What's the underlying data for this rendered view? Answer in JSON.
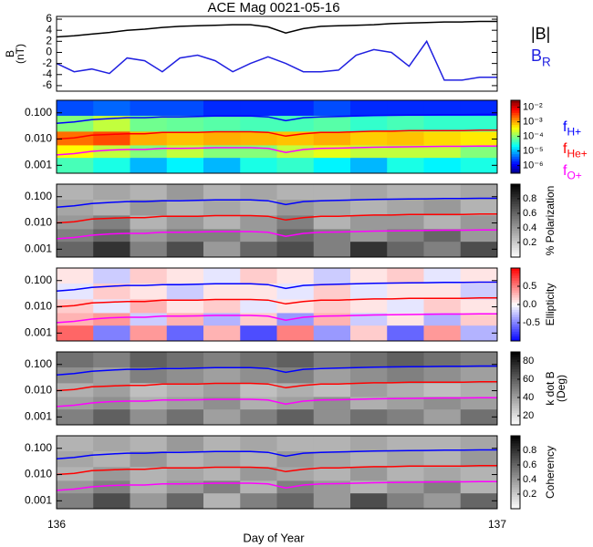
{
  "chart_data": [
    {
      "type": "line",
      "title": "ACE Mag 0021-05-16",
      "ylabel": [
        "B",
        "(nT)"
      ],
      "ylim": [
        -7,
        6.5
      ],
      "yticks": [
        -6,
        -4,
        -2,
        0,
        2,
        4,
        6
      ],
      "legend": "right",
      "x": [
        136,
        136.04,
        136.08,
        136.12,
        136.16,
        136.2,
        136.24,
        136.28,
        136.32,
        136.36,
        136.4,
        136.44,
        136.48,
        136.52,
        136.56,
        136.6,
        136.64,
        136.68,
        136.72,
        136.76,
        136.8,
        136.84,
        136.88,
        136.92,
        136.96,
        137
      ],
      "series": [
        {
          "name": "|B|",
          "color": "#000000",
          "values": [
            2.8,
            3.0,
            3.3,
            3.6,
            4.0,
            4.2,
            4.5,
            4.7,
            4.8,
            4.9,
            5.0,
            5.0,
            4.6,
            3.5,
            4.3,
            4.7,
            4.8,
            4.9,
            5.0,
            5.2,
            5.3,
            5.4,
            5.5,
            5.5,
            5.6,
            5.6
          ]
        },
        {
          "name": "B",
          "subscript": "R",
          "color": "#2020e0",
          "values": [
            -2.0,
            -3.5,
            -3.0,
            -3.8,
            -1.0,
            -1.5,
            -3.5,
            -1.0,
            -0.5,
            -1.5,
            -3.5,
            -2.0,
            -0.8,
            -2.0,
            -3.5,
            -3.5,
            -3.2,
            -0.5,
            0.5,
            0.0,
            -2.5,
            2.0,
            -5.0,
            -5.0,
            -4.5,
            -4.5
          ]
        }
      ]
    },
    {
      "type": "heatmap",
      "log_y": true,
      "ylim": [
        0.0005,
        0.3
      ],
      "yticks": [
        0.001,
        {
          "value": 0.01,
          "label": "0.010"
        },
        {
          "value": 0.1,
          "label": "0.100"
        }
      ],
      "x_bins": [
        136,
        136.0833,
        136.1667,
        136.25,
        136.3333,
        136.4167,
        136.5,
        136.5833,
        136.6667,
        136.75,
        136.8333,
        136.9167,
        137
      ],
      "y_bins": [
        0.0005,
        0.002,
        0.006,
        0.02,
        0.08,
        0.3
      ],
      "colormap": "jet",
      "log_c": true,
      "clim": [
        3e-07,
        0.03
      ],
      "cticks": [
        {
          "value": 0.01,
          "label": "10⁻²"
        },
        {
          "value": 0.001,
          "label": "10⁻³"
        },
        {
          "value": 0.0001,
          "label": "10⁻⁴"
        },
        {
          "value": 1e-05,
          "label": "10⁻⁵"
        },
        {
          "value": 1e-06,
          "label": "10⁻⁶"
        }
      ],
      "z": [
        [
          5e-05,
          3e-05,
          1e-05,
          2e-05,
          1e-05,
          3e-05,
          4e-05,
          2e-05,
          1e-05,
          3e-05,
          2e-05,
          3e-05
        ],
        [
          0.0004,
          0.0002,
          0.0001,
          0.0002,
          0.0001,
          0.0001,
          0.0002,
          0.0003,
          0.0002,
          0.0002,
          0.0002,
          0.0001
        ],
        [
          0.002,
          0.003,
          0.001,
          0.0008,
          0.001,
          0.0009,
          0.0008,
          0.001,
          0.0007,
          0.0008,
          0.0006,
          0.0005
        ],
        [
          0.0001,
          0.0002,
          8e-05,
          7e-05,
          6e-05,
          5e-05,
          5e-05,
          6e-05,
          4e-05,
          5e-05,
          4e-05,
          4e-05
        ],
        [
          3e-06,
          4e-06,
          3e-06,
          3e-06,
          2e-06,
          2e-06,
          2e-06,
          3e-06,
          2e-06,
          2e-06,
          2e-06,
          2e-06
        ]
      ],
      "series": [
        {
          "name": "f",
          "subscript": "H+",
          "color": "#0000ff",
          "values": [
            0.04,
            0.045,
            0.055,
            0.06,
            0.065,
            0.065,
            0.07,
            0.07,
            0.072,
            0.075,
            0.075,
            0.075,
            0.07,
            0.05,
            0.065,
            0.07,
            0.072,
            0.075,
            0.078,
            0.08,
            0.082,
            0.083,
            0.085,
            0.085,
            0.087,
            0.087
          ]
        },
        {
          "name": "f",
          "subscript": "He+",
          "color": "#ff0000",
          "values": [
            0.01,
            0.011,
            0.014,
            0.015,
            0.016,
            0.016,
            0.018,
            0.018,
            0.018,
            0.019,
            0.019,
            0.019,
            0.018,
            0.013,
            0.016,
            0.018,
            0.018,
            0.019,
            0.02,
            0.02,
            0.021,
            0.021,
            0.021,
            0.021,
            0.022,
            0.022
          ]
        },
        {
          "name": "f",
          "subscript": "O+",
          "color": "#ff00ff",
          "values": [
            0.0025,
            0.0028,
            0.0034,
            0.0038,
            0.004,
            0.004,
            0.0044,
            0.0044,
            0.0045,
            0.0047,
            0.0047,
            0.0047,
            0.0044,
            0.0031,
            0.004,
            0.0044,
            0.0045,
            0.0047,
            0.0049,
            0.005,
            0.0051,
            0.0052,
            0.0053,
            0.0053,
            0.0054,
            0.0054
          ]
        }
      ]
    },
    {
      "type": "heatmap",
      "log_y": true,
      "ylim": [
        0.0005,
        0.3
      ],
      "yticks": [
        0.001,
        {
          "value": 0.01,
          "label": "0.010"
        },
        {
          "value": 0.1,
          "label": "0.100"
        }
      ],
      "y_bins": [
        0.0005,
        0.002,
        0.006,
        0.02,
        0.08,
        0.3
      ],
      "colormap": "gray",
      "clim": [
        0,
        1
      ],
      "cticks": [
        0.2,
        0.4,
        0.6,
        0.8
      ],
      "clabel": [
        "% Polarization"
      ],
      "z": [
        [
          0.6,
          0.8,
          0.5,
          0.7,
          0.4,
          0.6,
          0.7,
          0.5,
          0.8,
          0.6,
          0.5,
          0.7
        ],
        [
          0.5,
          0.6,
          0.4,
          0.5,
          0.5,
          0.4,
          0.6,
          0.5,
          0.4,
          0.5,
          0.6,
          0.4
        ],
        [
          0.4,
          0.5,
          0.3,
          0.4,
          0.3,
          0.4,
          0.5,
          0.3,
          0.4,
          0.4,
          0.3,
          0.4
        ],
        [
          0.35,
          0.3,
          0.4,
          0.3,
          0.35,
          0.3,
          0.4,
          0.35,
          0.3,
          0.35,
          0.4,
          0.3
        ],
        [
          0.3,
          0.35,
          0.3,
          0.4,
          0.3,
          0.35,
          0.3,
          0.3,
          0.35,
          0.3,
          0.3,
          0.35
        ]
      ]
    },
    {
      "type": "heatmap",
      "log_y": true,
      "ylim": [
        0.0005,
        0.3
      ],
      "yticks": [
        0.001,
        {
          "value": 0.01,
          "label": "0.010"
        },
        {
          "value": 0.1,
          "label": "0.100"
        }
      ],
      "y_bins": [
        0.0005,
        0.002,
        0.006,
        0.02,
        0.08,
        0.3
      ],
      "colormap": "diverging",
      "clim": [
        -1,
        1
      ],
      "cticks": [
        0.5,
        {
          "value": 0,
          "label": "0.0"
        },
        -0.5
      ],
      "clabel": [
        "Ellipticity"
      ],
      "z": [
        [
          0.6,
          -0.5,
          0.4,
          -0.6,
          0.3,
          -0.7,
          0.5,
          -0.4,
          0.2,
          -0.6,
          0.4,
          -0.3
        ],
        [
          0.3,
          0.4,
          -0.2,
          0.3,
          -0.3,
          0.2,
          -0.4,
          0.3,
          -0.2,
          0.1,
          -0.3,
          0.2
        ],
        [
          0.2,
          -0.1,
          0.3,
          0.1,
          0.2,
          -0.1,
          0.1,
          0.2,
          0.1,
          -0.1,
          0.2,
          0.1
        ],
        [
          -0.1,
          0.2,
          0.1,
          -0.2,
          0.1,
          0.1,
          -0.1,
          0.2,
          -0.1,
          0.1,
          0.1,
          -0.2
        ],
        [
          0.1,
          -0.2,
          0.2,
          0.1,
          -0.1,
          0.2,
          0.1,
          -0.2,
          0.1,
          0.2,
          -0.1,
          0.1
        ]
      ]
    },
    {
      "type": "heatmap",
      "log_y": true,
      "ylim": [
        0.0005,
        0.3
      ],
      "yticks": [
        0.001,
        {
          "value": 0.01,
          "label": "0.010"
        },
        {
          "value": 0.1,
          "label": "0.100"
        }
      ],
      "y_bins": [
        0.0005,
        0.002,
        0.006,
        0.02,
        0.08,
        0.3
      ],
      "colormap": "gray",
      "clim": [
        10,
        90
      ],
      "cticks": [
        20,
        40,
        60,
        80
      ],
      "clabel": [
        "k dot B",
        "(Deg)"
      ],
      "z": [
        [
          50,
          60,
          45,
          55,
          40,
          50,
          60,
          45,
          55,
          50,
          40,
          55
        ],
        [
          40,
          45,
          35,
          40,
          45,
          35,
          40,
          45,
          35,
          40,
          45,
          40
        ],
        [
          35,
          40,
          30,
          35,
          40,
          30,
          35,
          30,
          40,
          35,
          30,
          35
        ],
        [
          45,
          40,
          50,
          45,
          40,
          45,
          50,
          40,
          45,
          50,
          45,
          40
        ],
        [
          55,
          50,
          60,
          55,
          50,
          55,
          60,
          50,
          55,
          60,
          55,
          50
        ]
      ]
    },
    {
      "type": "heatmap",
      "log_y": true,
      "ylim": [
        0.0005,
        0.3
      ],
      "yticks": [
        0.001,
        {
          "value": 0.01,
          "label": "0.010"
        },
        {
          "value": 0.1,
          "label": "0.100"
        }
      ],
      "y_bins": [
        0.0005,
        0.002,
        0.006,
        0.02,
        0.08,
        0.3
      ],
      "colormap": "gray",
      "clim": [
        0,
        1
      ],
      "cticks": [
        0.2,
        0.4,
        0.6,
        0.8
      ],
      "clabel": [
        "Coherency"
      ],
      "xlim": [
        136,
        137
      ],
      "xticks": [
        136,
        137
      ],
      "xlabel": "Day of Year",
      "z": [
        [
          0.5,
          0.7,
          0.4,
          0.6,
          0.3,
          0.5,
          0.6,
          0.4,
          0.7,
          0.5,
          0.4,
          0.6
        ],
        [
          0.4,
          0.5,
          0.3,
          0.4,
          0.5,
          0.3,
          0.5,
          0.4,
          0.3,
          0.4,
          0.5,
          0.3
        ],
        [
          0.3,
          0.4,
          0.3,
          0.35,
          0.3,
          0.4,
          0.35,
          0.3,
          0.4,
          0.3,
          0.35,
          0.3
        ],
        [
          0.35,
          0.3,
          0.4,
          0.3,
          0.35,
          0.3,
          0.4,
          0.35,
          0.3,
          0.35,
          0.3,
          0.4
        ],
        [
          0.3,
          0.35,
          0.3,
          0.4,
          0.3,
          0.35,
          0.3,
          0.3,
          0.35,
          0.3,
          0.3,
          0.35
        ]
      ]
    }
  ]
}
